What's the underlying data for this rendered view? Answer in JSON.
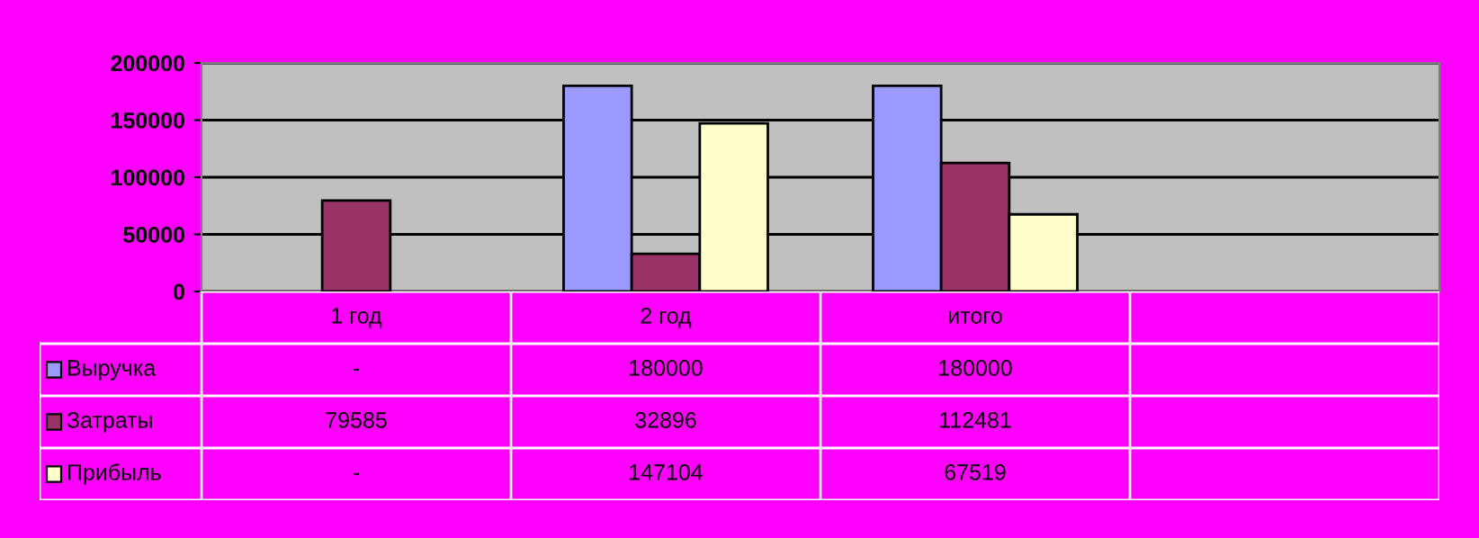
{
  "chart_data": {
    "type": "bar",
    "categories": [
      "1 год",
      "2 год",
      "итого",
      null
    ],
    "series": [
      {
        "name": "Выручка",
        "color": "#9999ff",
        "values": [
          null,
          180000,
          180000,
          null
        ],
        "value_labels": [
          "-",
          "180000",
          "180000",
          null
        ]
      },
      {
        "name": "Затраты",
        "color": "#993366",
        "values": [
          79585,
          32896,
          112481,
          null
        ],
        "value_labels": [
          "79585",
          "32896",
          "112481",
          null
        ]
      },
      {
        "name": "Прибыль",
        "color": "#ffffcc",
        "values": [
          null,
          147104,
          67519,
          null
        ],
        "value_labels": [
          "-",
          "147104",
          "67519",
          null
        ]
      }
    ],
    "ylim": [
      0,
      200000
    ],
    "yticks": [
      0,
      50000,
      100000,
      150000,
      200000
    ],
    "grid": "y",
    "legend": "left"
  }
}
